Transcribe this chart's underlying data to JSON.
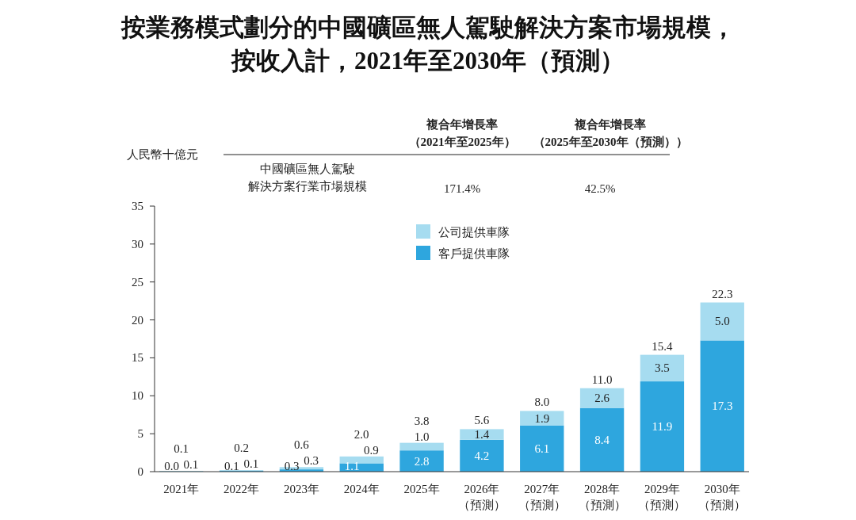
{
  "chart_data": {
    "type": "bar",
    "stacked": true,
    "title": "按業務模式劃分的中國礦區無人駕駛解決方案市場規模，按收入計，2021年至2030年（預測）",
    "ylabel": "人民幣十億元",
    "annotations": [
      "複合年增長率（2021年至2025年）",
      "複合年增長率（2025年至2030年（預測））",
      "中國礦區無人駕駛解決方案行業市場規模",
      "171.4%",
      "42.5%"
    ],
    "categories": [
      "2021年",
      "2022年",
      "2023年",
      "2024年",
      "2025年",
      "2026年（預測）",
      "2027年（預測）",
      "2028年（預測）",
      "2029年（預測）",
      "2030年（預測）"
    ],
    "series": [
      {
        "name": "客戶提供車隊",
        "color": "#2ea6de",
        "values": [
          0.0,
          0.1,
          0.3,
          1.1,
          2.8,
          4.2,
          6.1,
          8.4,
          11.9,
          17.3
        ],
        "value_labels": [
          "0.0",
          "0.1",
          "0.3",
          "1.1",
          "2.8",
          "4.2",
          "6.1",
          "8.4",
          "11.9",
          "17.3"
        ]
      },
      {
        "name": "公司提供車隊",
        "color": "#a6dcf0",
        "values": [
          0.1,
          0.1,
          0.3,
          0.9,
          1.0,
          1.4,
          1.9,
          2.6,
          3.5,
          5.0
        ],
        "value_labels": [
          "0.1",
          "0.1",
          "0.3",
          "0.9",
          "1.0",
          "1.4",
          "1.9",
          "2.6",
          "3.5",
          "5.0"
        ]
      }
    ],
    "totals": [
      "0.1",
      "0.2",
      "0.6",
      "2.0",
      "3.8",
      "5.6",
      "8.0",
      "11.0",
      "15.4",
      "22.3"
    ],
    "ylim": [
      0,
      35
    ],
    "yticks": [
      0,
      5,
      10,
      15,
      20,
      25,
      30,
      35
    ],
    "legend": "top"
  }
}
